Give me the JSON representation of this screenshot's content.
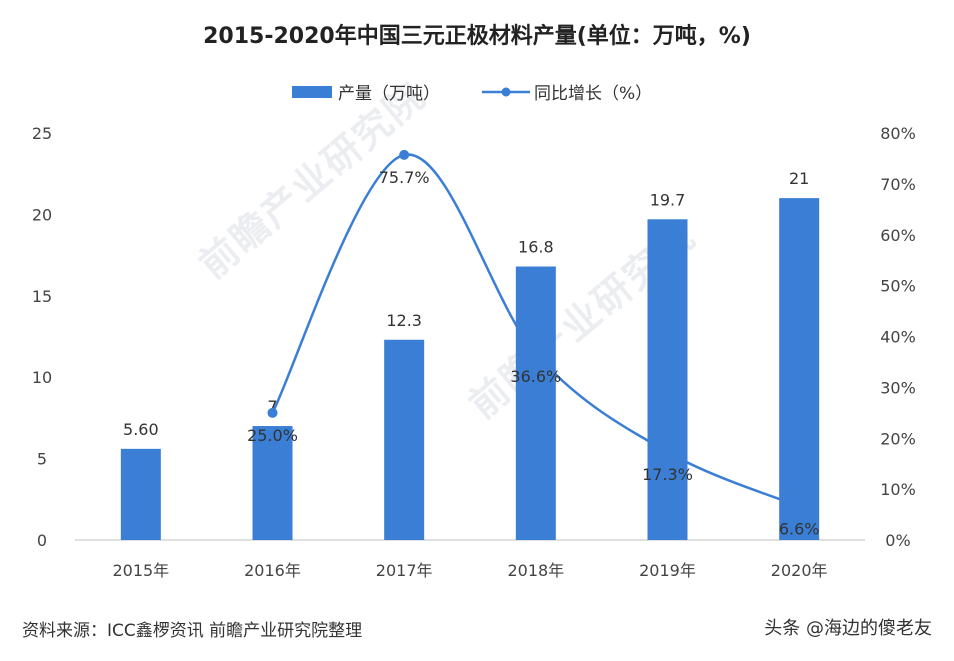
{
  "title": "2015-2020年中国三元正极材料产量(单位：万吨，%)",
  "source": "资料来源：ICC鑫椤资讯 前瞻产业研究院整理",
  "credit": "头条 @海边的傻老友",
  "watermark": "前瞻产业研究院",
  "colors": {
    "bar": "#3a7fd5",
    "line": "#3a7fd5",
    "grid": "#e6e6e6",
    "text": "#333333"
  },
  "chart_data": {
    "type": "bar",
    "categories": [
      "2015年",
      "2016年",
      "2017年",
      "2018年",
      "2019年",
      "2020年"
    ],
    "series": [
      {
        "name": "产量（万吨）",
        "type": "bar",
        "axis": "left",
        "values": [
          5.6,
          7,
          12.3,
          16.8,
          19.7,
          21
        ],
        "labels": [
          "5.60",
          "7",
          "12.3",
          "16.8",
          "19.7",
          "21"
        ]
      },
      {
        "name": "同比增长（%）",
        "type": "line",
        "axis": "right",
        "values": [
          null,
          25.0,
          75.7,
          36.6,
          17.3,
          6.6
        ],
        "labels": [
          "",
          "25.0%",
          "75.7%",
          "36.6%",
          "17.3%",
          "6.6%"
        ]
      }
    ],
    "left_axis": {
      "min": 0,
      "max": 25,
      "ticks": [
        "0",
        "5",
        "10",
        "15",
        "20",
        "25"
      ]
    },
    "right_axis": {
      "min": 0,
      "max": 80,
      "ticks": [
        "0%",
        "10%",
        "20%",
        "30%",
        "40%",
        "50%",
        "60%",
        "70%",
        "80%"
      ]
    },
    "legend_position": "top-center",
    "grid": false
  }
}
